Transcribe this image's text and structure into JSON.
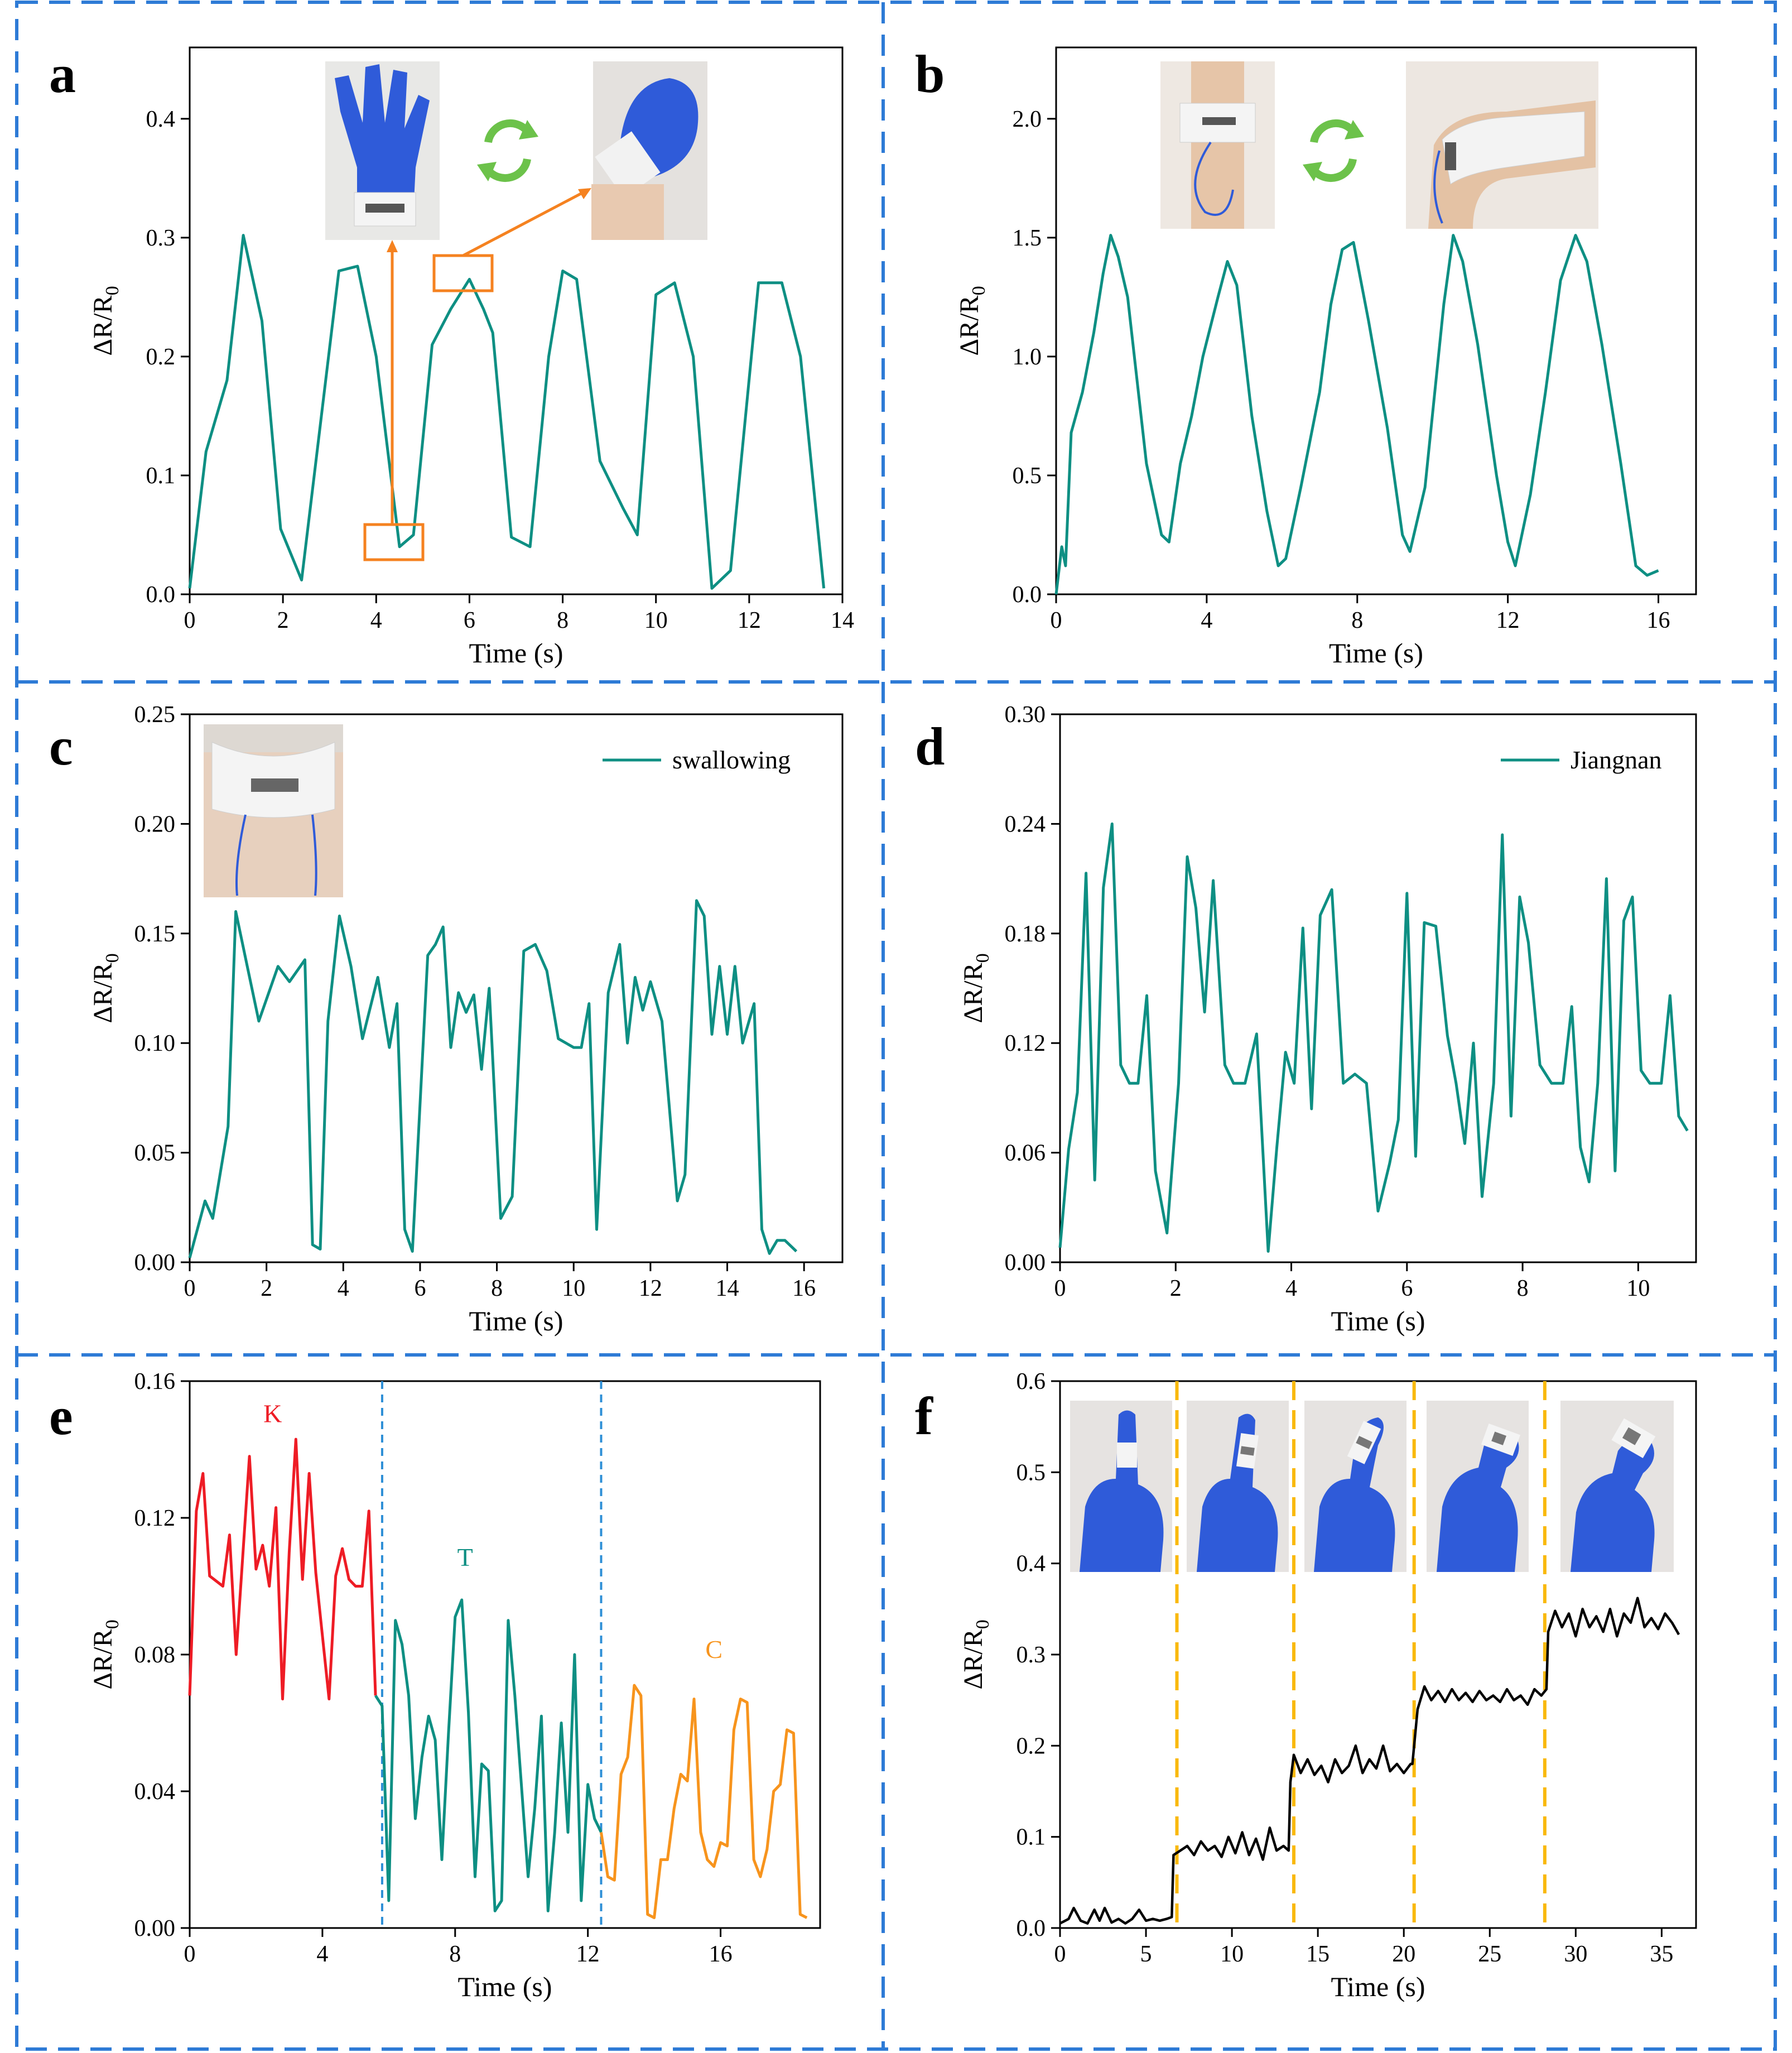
{
  "colors": {
    "teal": "#0E8F83",
    "red": "#EE1C25",
    "orange": "#F7941D",
    "black": "#000000",
    "frame": "#2E7BD6",
    "arrow": "#F58220",
    "recycle": "#6CC24A",
    "photo_blue": "#2F5BD9",
    "gold": "#F9B90E"
  },
  "chart_data": [
    {
      "id": "a",
      "type": "line",
      "panel_label": "a",
      "xlabel": "Time (s)",
      "ylabel": "ΔR/R",
      "ylabel_sub": "0",
      "xlim": [
        0,
        14
      ],
      "ylim": [
        0,
        0.46
      ],
      "xticks": [
        0,
        2,
        4,
        6,
        8,
        10,
        12,
        14
      ],
      "yticks": [
        0.0,
        0.1,
        0.2,
        0.3,
        0.4
      ],
      "yticklabels": [
        "0.0",
        "0.1",
        "0.2",
        "0.3",
        "0.4"
      ],
      "series": [
        {
          "name": "",
          "color": "#0E8F83",
          "x": [
            0,
            0.35,
            0.8,
            1.15,
            1.55,
            1.95,
            2.4,
            3.2,
            3.6,
            4.0,
            4.5,
            4.8,
            5.2,
            5.6,
            6.0,
            6.3,
            6.5,
            6.9,
            7.3,
            7.7,
            8.0,
            8.3,
            8.8,
            9.3,
            9.6,
            10.0,
            10.4,
            10.8,
            11.2,
            11.6,
            12.2,
            12.7,
            13.1,
            13.6
          ],
          "y": [
            0.005,
            0.12,
            0.18,
            0.302,
            0.23,
            0.055,
            0.012,
            0.272,
            0.276,
            0.2,
            0.04,
            0.05,
            0.21,
            0.24,
            0.265,
            0.24,
            0.22,
            0.048,
            0.04,
            0.2,
            0.272,
            0.265,
            0.112,
            0.072,
            0.05,
            0.252,
            0.262,
            0.2,
            0.005,
            0.02,
            0.262,
            0.262,
            0.2,
            0.005
          ]
        }
      ]
    },
    {
      "id": "b",
      "type": "line",
      "panel_label": "b",
      "xlabel": "Time (s)",
      "ylabel": "ΔR/R",
      "ylabel_sub": "0",
      "xlim": [
        0,
        17
      ],
      "ylim": [
        0,
        2.3
      ],
      "xticks": [
        0,
        4,
        8,
        12,
        16
      ],
      "yticks": [
        0.0,
        0.5,
        1.0,
        1.5,
        2.0
      ],
      "yticklabels": [
        "0.0",
        "0.5",
        "1.0",
        "1.5",
        "2.0"
      ],
      "series": [
        {
          "name": "",
          "color": "#0E8F83",
          "x": [
            0,
            0.15,
            0.25,
            0.4,
            0.7,
            1.0,
            1.25,
            1.45,
            1.65,
            1.9,
            2.4,
            2.8,
            3.0,
            3.3,
            3.6,
            3.9,
            4.3,
            4.55,
            4.8,
            5.2,
            5.6,
            5.9,
            6.1,
            6.5,
            7.0,
            7.3,
            7.6,
            7.9,
            8.3,
            8.8,
            9.2,
            9.4,
            9.8,
            10.3,
            10.55,
            10.8,
            11.2,
            11.7,
            12.0,
            12.2,
            12.6,
            13.0,
            13.4,
            13.8,
            14.1,
            14.5,
            15.0,
            15.4,
            15.7,
            16.0
          ],
          "y": [
            0.0,
            0.2,
            0.12,
            0.68,
            0.85,
            1.1,
            1.35,
            1.51,
            1.42,
            1.25,
            0.55,
            0.25,
            0.22,
            0.55,
            0.75,
            1.0,
            1.25,
            1.4,
            1.3,
            0.75,
            0.35,
            0.12,
            0.15,
            0.45,
            0.85,
            1.22,
            1.45,
            1.48,
            1.15,
            0.7,
            0.25,
            0.18,
            0.45,
            1.22,
            1.51,
            1.4,
            1.05,
            0.5,
            0.22,
            0.12,
            0.42,
            0.85,
            1.32,
            1.51,
            1.4,
            1.05,
            0.55,
            0.12,
            0.08,
            0.1
          ]
        }
      ]
    },
    {
      "id": "c",
      "type": "line",
      "panel_label": "c",
      "xlabel": "Time (s)",
      "ylabel": "ΔR/R",
      "ylabel_sub": "0",
      "xlim": [
        0,
        17
      ],
      "ylim": [
        0,
        0.25
      ],
      "xticks": [
        0,
        2,
        4,
        6,
        8,
        10,
        12,
        14,
        16
      ],
      "yticks": [
        0.0,
        0.05,
        0.1,
        0.15,
        0.2,
        0.25
      ],
      "yticklabels": [
        "0.00",
        "0.05",
        "0.10",
        "0.15",
        "0.20",
        "0.25"
      ],
      "legend": "swallowing",
      "series": [
        {
          "name": "swallowing",
          "color": "#0E8F83",
          "x": [
            0,
            0.4,
            0.6,
            1.0,
            1.2,
            1.5,
            1.8,
            2.3,
            2.6,
            3.0,
            3.2,
            3.4,
            3.6,
            3.9,
            4.2,
            4.5,
            4.9,
            5.2,
            5.4,
            5.6,
            5.8,
            6.2,
            6.4,
            6.6,
            6.8,
            7.0,
            7.2,
            7.4,
            7.6,
            7.8,
            8.1,
            8.4,
            8.7,
            9.0,
            9.3,
            9.6,
            10.0,
            10.2,
            10.4,
            10.6,
            10.9,
            11.2,
            11.4,
            11.6,
            11.8,
            12.0,
            12.3,
            12.7,
            12.9,
            13.2,
            13.4,
            13.6,
            13.8,
            14.0,
            14.2,
            14.4,
            14.7,
            14.9,
            15.1,
            15.3,
            15.5,
            15.8
          ],
          "y": [
            0.002,
            0.028,
            0.02,
            0.062,
            0.16,
            0.135,
            0.11,
            0.135,
            0.128,
            0.138,
            0.008,
            0.006,
            0.11,
            0.158,
            0.135,
            0.102,
            0.13,
            0.098,
            0.118,
            0.015,
            0.005,
            0.14,
            0.145,
            0.153,
            0.098,
            0.123,
            0.114,
            0.122,
            0.088,
            0.125,
            0.02,
            0.03,
            0.142,
            0.145,
            0.133,
            0.102,
            0.098,
            0.098,
            0.118,
            0.015,
            0.123,
            0.145,
            0.1,
            0.13,
            0.115,
            0.128,
            0.11,
            0.028,
            0.04,
            0.165,
            0.158,
            0.104,
            0.135,
            0.104,
            0.135,
            0.1,
            0.118,
            0.015,
            0.004,
            0.01,
            0.01,
            0.005
          ]
        }
      ]
    },
    {
      "id": "d",
      "type": "line",
      "panel_label": "d",
      "xlabel": "Time (s)",
      "ylabel": "ΔR/R",
      "ylabel_sub": "0",
      "xlim": [
        0,
        11
      ],
      "ylim": [
        0,
        0.3
      ],
      "xticks": [
        0,
        2,
        4,
        6,
        8,
        10
      ],
      "yticks": [
        0.0,
        0.06,
        0.12,
        0.18,
        0.24,
        0.3
      ],
      "yticklabels": [
        "0.00",
        "0.06",
        "0.12",
        "0.18",
        "0.24",
        "0.30"
      ],
      "legend": "Jiangnan",
      "series": [
        {
          "name": "Jiangnan",
          "color": "#0E8F83",
          "x": [
            0,
            0.15,
            0.3,
            0.45,
            0.6,
            0.75,
            0.9,
            1.05,
            1.2,
            1.35,
            1.5,
            1.65,
            1.85,
            2.05,
            2.2,
            2.35,
            2.5,
            2.65,
            2.85,
            3.0,
            3.2,
            3.4,
            3.6,
            3.75,
            3.9,
            4.05,
            4.2,
            4.35,
            4.5,
            4.7,
            4.9,
            5.1,
            5.3,
            5.5,
            5.7,
            5.85,
            6.0,
            6.15,
            6.3,
            6.5,
            6.7,
            6.85,
            7.0,
            7.15,
            7.3,
            7.5,
            7.65,
            7.8,
            7.95,
            8.1,
            8.3,
            8.5,
            8.7,
            8.85,
            9.0,
            9.15,
            9.3,
            9.45,
            9.6,
            9.75,
            9.9,
            10.05,
            10.2,
            10.4,
            10.55,
            10.7,
            10.85
          ],
          "y": [
            0.008,
            0.062,
            0.093,
            0.213,
            0.045,
            0.205,
            0.24,
            0.108,
            0.098,
            0.098,
            0.146,
            0.05,
            0.016,
            0.098,
            0.222,
            0.194,
            0.137,
            0.209,
            0.108,
            0.098,
            0.098,
            0.125,
            0.006,
            0.063,
            0.115,
            0.098,
            0.183,
            0.084,
            0.19,
            0.204,
            0.098,
            0.103,
            0.098,
            0.028,
            0.054,
            0.078,
            0.202,
            0.058,
            0.186,
            0.184,
            0.124,
            0.098,
            0.065,
            0.12,
            0.036,
            0.098,
            0.234,
            0.08,
            0.2,
            0.175,
            0.108,
            0.098,
            0.098,
            0.14,
            0.063,
            0.044,
            0.098,
            0.21,
            0.05,
            0.187,
            0.2,
            0.105,
            0.098,
            0.098,
            0.146,
            0.08,
            0.072
          ]
        }
      ]
    },
    {
      "id": "e",
      "type": "line",
      "panel_label": "e",
      "xlabel": "Time (s)",
      "ylabel": "ΔR/R",
      "ylabel_sub": "0",
      "xlim": [
        0,
        19
      ],
      "ylim": [
        0,
        0.16
      ],
      "xticks": [
        0,
        4,
        8,
        12,
        16
      ],
      "yticks": [
        0.0,
        0.04,
        0.08,
        0.12,
        0.16
      ],
      "yticklabels": [
        "0.00",
        "0.04",
        "0.08",
        "0.12",
        "0.16"
      ],
      "dividers_x": [
        5.8,
        12.4
      ],
      "series": [
        {
          "name": "K",
          "color": "#EE1C25",
          "x": [
            0,
            0.2,
            0.4,
            0.6,
            1.0,
            1.2,
            1.4,
            1.8,
            2.0,
            2.2,
            2.4,
            2.6,
            2.8,
            3.0,
            3.2,
            3.4,
            3.6,
            3.8,
            4.2,
            4.4,
            4.6,
            4.8,
            5.0,
            5.2,
            5.4,
            5.6
          ],
          "y": [
            0.068,
            0.122,
            0.133,
            0.103,
            0.1,
            0.115,
            0.08,
            0.138,
            0.105,
            0.112,
            0.1,
            0.123,
            0.067,
            0.11,
            0.143,
            0.102,
            0.133,
            0.104,
            0.067,
            0.103,
            0.111,
            0.102,
            0.1,
            0.1,
            0.122,
            0.068
          ]
        },
        {
          "name": "T",
          "color": "#0E8F83",
          "x": [
            5.6,
            5.8,
            6.0,
            6.2,
            6.4,
            6.6,
            6.8,
            7.0,
            7.2,
            7.4,
            7.6,
            7.8,
            8.0,
            8.2,
            8.4,
            8.6,
            8.8,
            9.0,
            9.2,
            9.4,
            9.6,
            9.8,
            10.2,
            10.4,
            10.6,
            10.8,
            11.0,
            11.2,
            11.4,
            11.6,
            11.8,
            12.0,
            12.2,
            12.4
          ],
          "y": [
            0.068,
            0.065,
            0.008,
            0.09,
            0.083,
            0.068,
            0.032,
            0.05,
            0.062,
            0.055,
            0.02,
            0.057,
            0.091,
            0.096,
            0.063,
            0.015,
            0.048,
            0.046,
            0.005,
            0.008,
            0.09,
            0.068,
            0.015,
            0.035,
            0.062,
            0.005,
            0.028,
            0.06,
            0.028,
            0.08,
            0.008,
            0.042,
            0.032,
            0.028
          ]
        },
        {
          "name": "C",
          "color": "#F7941D",
          "x": [
            12.4,
            12.6,
            12.8,
            13.0,
            13.2,
            13.4,
            13.6,
            13.8,
            14.0,
            14.2,
            14.4,
            14.6,
            14.8,
            15.0,
            15.2,
            15.4,
            15.6,
            15.8,
            16.0,
            16.2,
            16.4,
            16.6,
            16.8,
            17.0,
            17.2,
            17.4,
            17.6,
            17.8,
            18.0,
            18.2,
            18.4,
            18.6
          ],
          "y": [
            0.028,
            0.015,
            0.014,
            0.045,
            0.05,
            0.071,
            0.068,
            0.004,
            0.003,
            0.02,
            0.02,
            0.035,
            0.045,
            0.043,
            0.067,
            0.028,
            0.02,
            0.018,
            0.025,
            0.024,
            0.058,
            0.067,
            0.066,
            0.02,
            0.015,
            0.023,
            0.04,
            0.042,
            0.058,
            0.057,
            0.004,
            0.003
          ]
        }
      ],
      "annotations": [
        {
          "text": "K",
          "x": 2.5,
          "y": 0.148,
          "color": "#EE1C25"
        },
        {
          "text": "T",
          "x": 8.3,
          "y": 0.106,
          "color": "#0E8F83"
        },
        {
          "text": "C",
          "x": 15.8,
          "y": 0.079,
          "color": "#F7941D"
        }
      ]
    },
    {
      "id": "f",
      "type": "line",
      "panel_label": "f",
      "xlabel": "Time (s)",
      "ylabel": "ΔR/R",
      "ylabel_sub": "0",
      "xlim": [
        0,
        37
      ],
      "ylim": [
        0,
        0.6
      ],
      "xticks": [
        0,
        5,
        10,
        15,
        20,
        25,
        30,
        35
      ],
      "yticks": [
        0.0,
        0.1,
        0.2,
        0.3,
        0.4,
        0.5,
        0.6
      ],
      "yticklabels": [
        "0.0",
        "0.1",
        "0.2",
        "0.3",
        "0.4",
        "0.5",
        "0.6"
      ],
      "dividers_x": [
        6.8,
        13.6,
        20.6,
        28.2
      ],
      "series": [
        {
          "name": "",
          "color": "#000000",
          "x": [
            0,
            0.5,
            0.8,
            1.2,
            1.6,
            2.0,
            2.3,
            2.6,
            3.0,
            3.4,
            3.8,
            4.2,
            4.6,
            5.0,
            5.4,
            5.8,
            6.2,
            6.5,
            6.6,
            7.0,
            7.4,
            7.8,
            8.2,
            8.6,
            9.0,
            9.4,
            9.8,
            10.2,
            10.6,
            11.0,
            11.4,
            11.8,
            12.2,
            12.6,
            13.0,
            13.3,
            13.4,
            13.6,
            14.0,
            14.4,
            14.8,
            15.2,
            15.6,
            16.0,
            16.4,
            16.8,
            17.2,
            17.6,
            18.0,
            18.4,
            18.8,
            19.2,
            19.6,
            20.0,
            20.4,
            20.5,
            20.8,
            21.2,
            21.6,
            22.0,
            22.4,
            22.8,
            23.2,
            23.6,
            24.0,
            24.4,
            24.8,
            25.2,
            25.6,
            26.0,
            26.4,
            26.8,
            27.2,
            27.6,
            28.0,
            28.3,
            28.4,
            28.8,
            29.2,
            29.6,
            30.0,
            30.4,
            30.8,
            31.2,
            31.6,
            32.0,
            32.4,
            32.8,
            33.2,
            33.6,
            34.0,
            34.4,
            34.8,
            35.2,
            35.6,
            36.0
          ],
          "y": [
            0.005,
            0.01,
            0.022,
            0.008,
            0.005,
            0.02,
            0.008,
            0.022,
            0.006,
            0.01,
            0.005,
            0.01,
            0.02,
            0.008,
            0.01,
            0.008,
            0.01,
            0.012,
            0.08,
            0.085,
            0.09,
            0.08,
            0.095,
            0.085,
            0.09,
            0.078,
            0.1,
            0.082,
            0.105,
            0.08,
            0.098,
            0.075,
            0.11,
            0.085,
            0.09,
            0.085,
            0.16,
            0.19,
            0.17,
            0.185,
            0.168,
            0.178,
            0.16,
            0.185,
            0.17,
            0.178,
            0.2,
            0.17,
            0.185,
            0.175,
            0.2,
            0.172,
            0.18,
            0.17,
            0.18,
            0.18,
            0.24,
            0.265,
            0.25,
            0.26,
            0.248,
            0.262,
            0.25,
            0.258,
            0.248,
            0.26,
            0.25,
            0.255,
            0.248,
            0.262,
            0.25,
            0.255,
            0.245,
            0.262,
            0.255,
            0.262,
            0.325,
            0.348,
            0.33,
            0.345,
            0.32,
            0.35,
            0.33,
            0.342,
            0.325,
            0.35,
            0.32,
            0.345,
            0.335,
            0.362,
            0.33,
            0.34,
            0.328,
            0.345,
            0.335,
            0.322
          ]
        }
      ]
    }
  ]
}
